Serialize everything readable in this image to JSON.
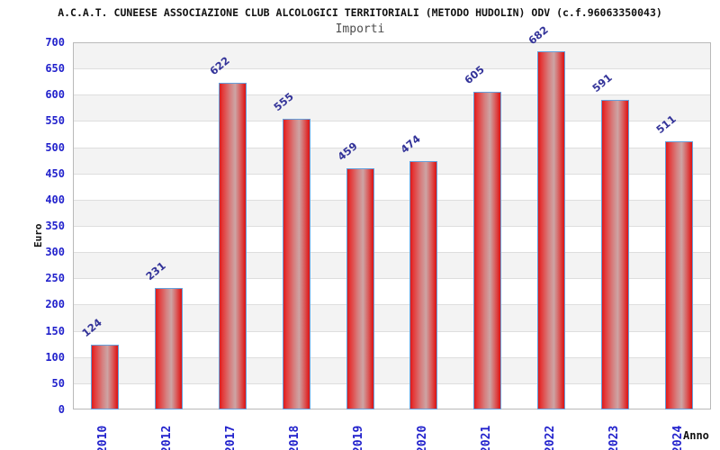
{
  "header": {
    "title": "A.C.A.T. CUNEESE ASSOCIAZIONE CLUB ALCOLOGICI TERRITORIALI (METODO HUDOLIN) ODV (c.f.96063350043)",
    "subtitle": "Importi"
  },
  "chart_data": {
    "type": "bar",
    "title": "Importi",
    "categories": [
      "2010",
      "2012",
      "2017",
      "2018",
      "2019",
      "2020",
      "2021",
      "2022",
      "2023",
      "2024"
    ],
    "values": [
      124,
      231,
      622,
      555,
      459,
      474,
      605,
      682,
      591,
      511
    ],
    "xlabel": "Anno",
    "ylabel": "Euro",
    "ylim": [
      0,
      700
    ],
    "y_tick_step": 50,
    "grid": true,
    "legend": "none",
    "band_color": "#f3f3f3",
    "bar_color_edge": "#dd1b1b",
    "bar_color_mid": "#cda4a4",
    "bar_border_color": "#64a0dc",
    "tick_label_color": "#2222cc",
    "value_label_color": "#333399"
  }
}
